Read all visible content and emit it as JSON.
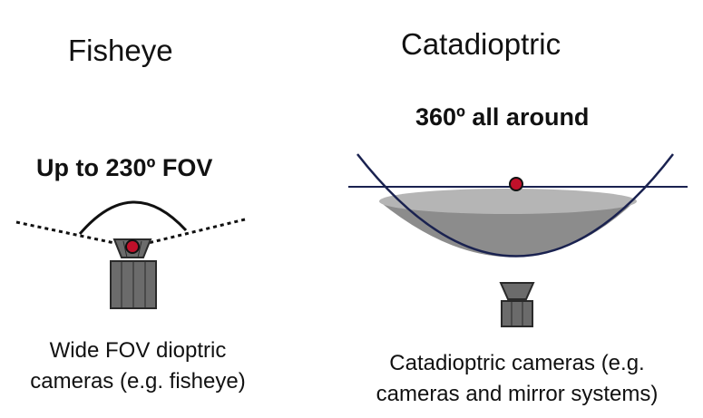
{
  "left": {
    "title": "Fisheye",
    "fov_label": "Up to 230º FOV",
    "caption_lines": [
      "Wide FOV dioptric",
      "cameras (e.g. fisheye)"
    ]
  },
  "right": {
    "title": "Catadioptric",
    "fov_label": "360º all around",
    "caption_lines": [
      "Catadioptric cameras (e.g.",
      "cameras and mirror systems)"
    ]
  },
  "colors": {
    "camera_body": "#6b6b6b",
    "camera_stroke": "#2a2a2a",
    "center_point": "#c0102a",
    "mirror_fill": "#8c8c8c",
    "mirror_top": "#b5b5b5",
    "horizon_line": "#1a2250"
  }
}
